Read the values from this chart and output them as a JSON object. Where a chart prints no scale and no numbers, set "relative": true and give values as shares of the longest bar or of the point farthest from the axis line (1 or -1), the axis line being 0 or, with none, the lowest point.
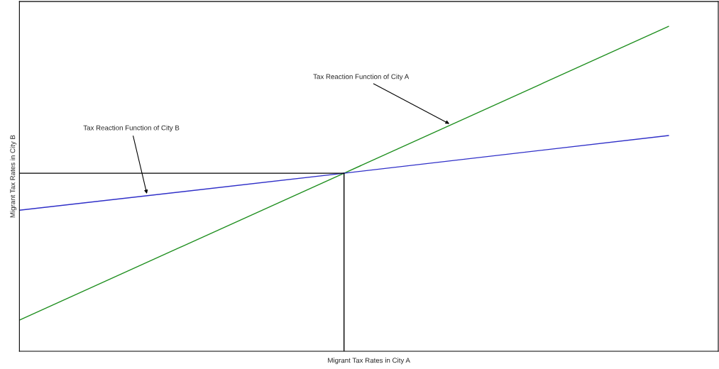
{
  "chart_data": {
    "type": "line",
    "relative": true,
    "xlabel": "Migrant Tax Rates in City A",
    "ylabel": "Migrant Tax Rates in City B",
    "categories": [
      null,
      null,
      null
    ],
    "series": [
      {
        "color": "#1f8f1f",
        "values": [
          0.096,
          0.548,
          1
        ]
      },
      {
        "color": "#2f2fc8",
        "values": [
          0.434,
          0.548,
          0.664
        ]
      }
    ],
    "ref_lines": [
      {
        "axis": "y",
        "value": 0.548,
        "color": "#000000"
      }
    ],
    "annotations": [
      "Tax Reaction Function of City A",
      "Tax Reaction Function of City B"
    ]
  }
}
